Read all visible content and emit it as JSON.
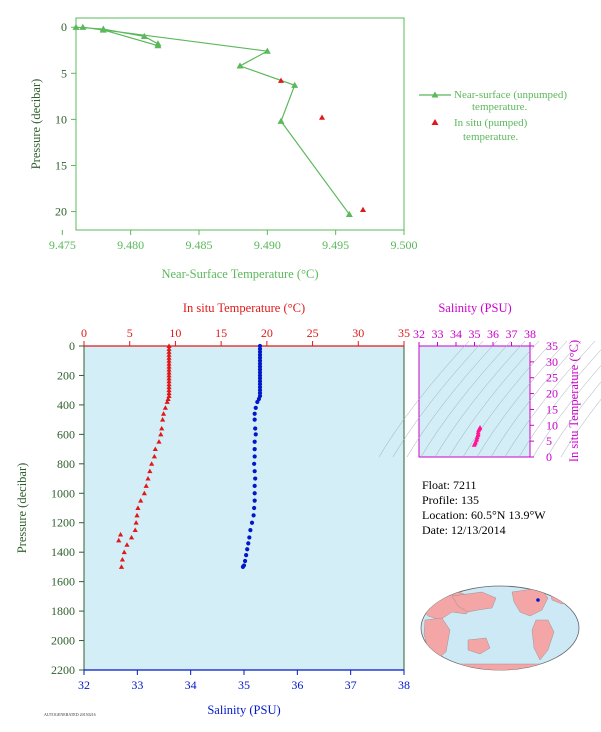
{
  "chart_data": [
    {
      "type": "line",
      "xlabel": "Near-Surface Temperature (°C)",
      "ylabel": "Pressure (decibar)",
      "xlim": [
        9.476,
        9.5
      ],
      "ylim": [
        22,
        -1
      ],
      "x_ticks": [
        "9.475",
        "9.480",
        "9.485",
        "9.490",
        "9.495",
        "9.500"
      ],
      "x_tick_values": [
        9.475,
        9.48,
        9.485,
        9.49,
        9.495,
        9.5
      ],
      "y_ticks": [
        "0",
        "5",
        "10",
        "15",
        "20"
      ],
      "y_tick_values": [
        0,
        5,
        10,
        15,
        20
      ],
      "series": [
        {
          "name": "Near-surface (unpumped) temperature.",
          "color": "#5bb85b",
          "marker": "triangle",
          "x": [
            9.476,
            9.478,
            9.481,
            9.482,
            9.482,
            9.478,
            9.4765,
            9.49,
            9.488,
            9.492,
            9.491,
            9.496
          ],
          "y": [
            0.0,
            0.2,
            1.0,
            1.8,
            2.0,
            0.3,
            0.0,
            2.6,
            4.2,
            6.3,
            10.2,
            20.3
          ]
        },
        {
          "name": "In situ (pumped) temperature.",
          "color": "#e01818",
          "marker": "triangle",
          "x": [
            9.491,
            9.494,
            9.497
          ],
          "y": [
            5.8,
            9.8,
            19.8
          ]
        }
      ]
    },
    {
      "type": "scatter",
      "top_axis_label": "In situ Temperature (°C)",
      "bottom_axis_label": "Salinity (PSU)",
      "ylabel": "Pressure (decibar)",
      "temp_xlim": [
        0,
        35
      ],
      "sal_xlim": [
        32,
        38
      ],
      "ylim": [
        2200,
        0
      ],
      "temp_ticks": [
        "0",
        "5",
        "10",
        "15",
        "20",
        "25",
        "30",
        "35"
      ],
      "sal_ticks": [
        "32",
        "33",
        "34",
        "35",
        "36",
        "37",
        "38"
      ],
      "y_ticks": [
        "0",
        "200",
        "400",
        "600",
        "800",
        "1000",
        "1200",
        "1400",
        "1600",
        "1800",
        "2000",
        "2200"
      ],
      "background": "#d4eef8",
      "series": [
        {
          "name": "Temperature",
          "color": "#e01818",
          "marker": "triangle",
          "x": [
            9.3,
            9.3,
            9.3,
            9.3,
            9.3,
            9.3,
            9.3,
            9.3,
            9.3,
            9.3,
            9.3,
            9.3,
            9.3,
            9.3,
            9.3,
            9.3,
            9.3,
            9.3,
            9.2,
            9.1,
            8.9,
            8.7,
            8.6,
            8.5,
            8.4,
            8.2,
            7.8,
            7.7,
            7.4,
            7.2,
            7.0,
            6.8,
            6.6,
            6.2,
            5.9,
            5.8,
            5.7,
            5.6,
            5.2,
            4.7,
            4.4,
            4.2,
            4.1,
            4.0,
            3.8
          ],
          "y": [
            0,
            20,
            40,
            60,
            80,
            100,
            120,
            140,
            160,
            180,
            200,
            220,
            240,
            260,
            280,
            300,
            320,
            340,
            360,
            380,
            420,
            460,
            500,
            560,
            600,
            650,
            700,
            750,
            800,
            850,
            900,
            950,
            1000,
            1050,
            1100,
            1150,
            1200,
            1250,
            1300,
            1350,
            1400,
            1450,
            1500,
            1280,
            1320
          ]
        },
        {
          "name": "Salinity",
          "color": "#0018c8",
          "marker": "circle",
          "x": [
            35.3,
            35.3,
            35.3,
            35.3,
            35.3,
            35.3,
            35.3,
            35.3,
            35.3,
            35.3,
            35.3,
            35.3,
            35.3,
            35.3,
            35.3,
            35.3,
            35.3,
            35.3,
            35.28,
            35.25,
            35.22,
            35.2,
            35.2,
            35.21,
            35.22,
            35.2,
            35.2,
            35.2,
            35.19,
            35.2,
            35.21,
            35.2,
            35.2,
            35.2,
            35.19,
            35.18,
            35.15,
            35.12,
            35.1,
            35.08,
            35.06,
            35.04,
            35.02,
            35.0,
            34.98
          ],
          "y": [
            0,
            20,
            40,
            60,
            80,
            100,
            120,
            140,
            160,
            180,
            200,
            220,
            240,
            260,
            280,
            300,
            320,
            340,
            360,
            380,
            420,
            460,
            500,
            560,
            600,
            650,
            700,
            750,
            800,
            850,
            900,
            950,
            1000,
            1050,
            1100,
            1150,
            1200,
            1250,
            1300,
            1340,
            1380,
            1420,
            1460,
            1490,
            1500
          ]
        }
      ]
    },
    {
      "type": "scatter",
      "top_axis_label": "Salinity (PSU)",
      "right_axis_label": "In situ Temperature (°C)",
      "sal_xlim": [
        32,
        38
      ],
      "temp_ylim": [
        0,
        35
      ],
      "sal_ticks": [
        "32",
        "33",
        "34",
        "35",
        "36",
        "37",
        "38"
      ],
      "temp_ticks": [
        "0",
        "5",
        "10",
        "15",
        "20",
        "25",
        "30",
        "35"
      ],
      "background": "#d4eef8",
      "series": [
        {
          "name": "T-S",
          "color": "#ff1493",
          "marker": "triangle",
          "x": [
            35.3,
            35.28,
            35.25,
            35.22,
            35.2,
            35.2,
            35.18,
            35.15,
            35.12,
            35.1,
            35.05,
            35.02,
            34.98
          ],
          "y": [
            9.3,
            9.1,
            8.8,
            8.4,
            7.8,
            7.2,
            6.8,
            6.2,
            5.7,
            5.2,
            4.6,
            4.2,
            3.8
          ]
        }
      ]
    }
  ],
  "legend": {
    "item1_line1": "Near-surface (unpumped)",
    "item1_line2": "temperature.",
    "item2_line1": "In situ (pumped)",
    "item2_line2": "temperature."
  },
  "info": {
    "float": "Float:  7211",
    "profile": "Profile:  135",
    "location": "Location:  60.5°N  13.9°W",
    "date": "Date:  12/13/2014"
  },
  "footer_code": "AUTOGENERATED 20150216",
  "colors": {
    "green": "#5bb85b",
    "red": "#e01818",
    "blue": "#0018c8",
    "magenta": "#cc00cc",
    "dark_green": "#2e5f2e",
    "panel_bg": "#d4eef8",
    "land": "#f4a6a6",
    "ocean": "#cde9f6"
  }
}
